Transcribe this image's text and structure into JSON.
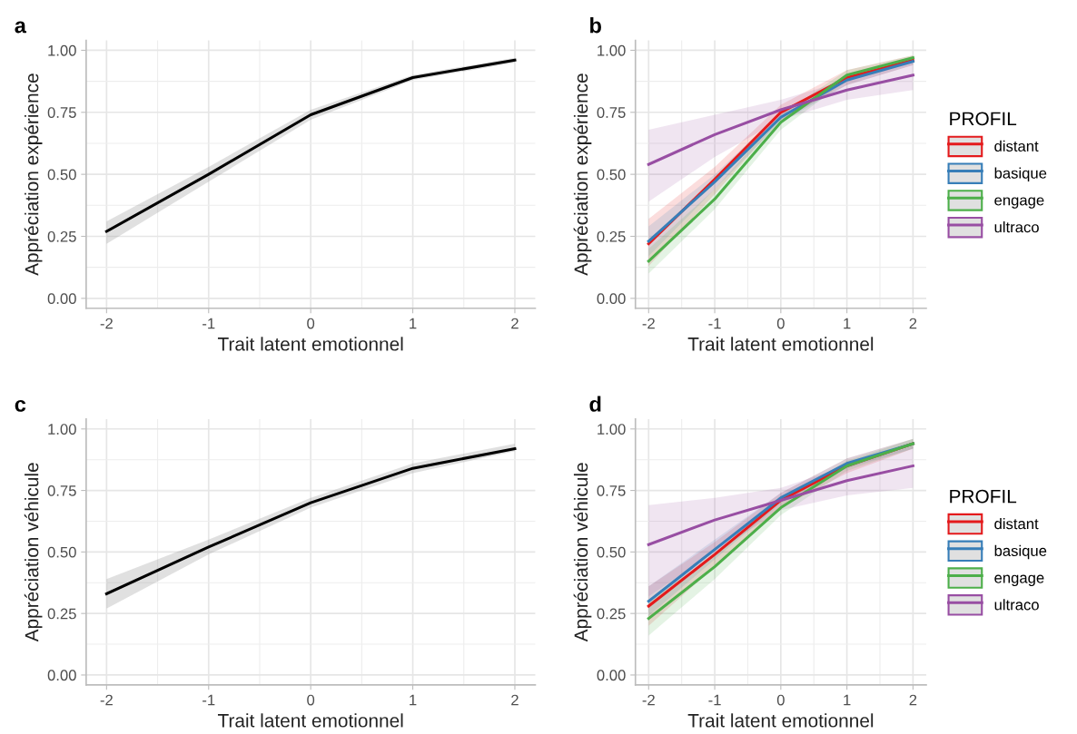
{
  "chart_data": [
    {
      "type": "line",
      "title": "a",
      "xlabel": "Trait latent emotionnel",
      "ylabel": "Appréciation expérience",
      "x": [
        -2,
        -1,
        0,
        1,
        2
      ],
      "xlim": [
        -2.2,
        2.2
      ],
      "xticks": [
        -2,
        -1,
        0,
        1,
        2
      ],
      "ylim": [
        -0.04,
        1.04
      ],
      "yticks": [
        {
          "value": 0,
          "label": "0.00"
        },
        {
          "value": 0.25,
          "label": "0.25"
        },
        {
          "value": 0.5,
          "label": "0.50"
        },
        {
          "value": 0.75,
          "label": "0.75"
        },
        {
          "value": 1,
          "label": "1.00"
        }
      ],
      "grid": true,
      "legend": false,
      "series": [
        {
          "color": "#000000",
          "values": [
            0.27,
            0.5,
            0.74,
            0.89,
            0.96
          ],
          "lower": [
            0.22,
            0.47,
            0.72,
            0.88,
            0.95
          ],
          "upper": [
            0.31,
            0.53,
            0.76,
            0.9,
            0.97
          ]
        }
      ]
    },
    {
      "type": "line",
      "title": "b",
      "xlabel": "Trait latent emotionnel",
      "ylabel": "Appréciation expérience",
      "legend_title": "PROFIL",
      "x": [
        -2,
        -1,
        0,
        1,
        2
      ],
      "xlim": [
        -2.2,
        2.2
      ],
      "xticks": [
        -2,
        -1,
        0,
        1,
        2
      ],
      "ylim": [
        -0.04,
        1.04
      ],
      "yticks": [
        {
          "value": 0,
          "label": "0.00"
        },
        {
          "value": 0.25,
          "label": "0.25"
        },
        {
          "value": 0.5,
          "label": "0.50"
        },
        {
          "value": 0.75,
          "label": "0.75"
        },
        {
          "value": 1,
          "label": "1.00"
        }
      ],
      "grid": true,
      "legend": "right",
      "series": [
        {
          "name": "distant",
          "color": "#e41a1c",
          "values": [
            0.22,
            0.48,
            0.75,
            0.89,
            0.96
          ],
          "lower": [
            0.13,
            0.42,
            0.72,
            0.86,
            0.94
          ],
          "upper": [
            0.32,
            0.53,
            0.78,
            0.92,
            0.98
          ]
        },
        {
          "name": "basique",
          "color": "#377eb8",
          "values": [
            0.23,
            0.47,
            0.73,
            0.88,
            0.955
          ],
          "lower": [
            0.17,
            0.44,
            0.71,
            0.86,
            0.94
          ],
          "upper": [
            0.29,
            0.5,
            0.75,
            0.9,
            0.97
          ]
        },
        {
          "name": "engage",
          "color": "#4daf4a",
          "values": [
            0.15,
            0.4,
            0.71,
            0.9,
            0.97
          ],
          "lower": [
            0.1,
            0.36,
            0.68,
            0.88,
            0.96
          ],
          "upper": [
            0.2,
            0.44,
            0.74,
            0.92,
            0.98
          ]
        },
        {
          "name": "ultraco",
          "color": "#984ea3",
          "values": [
            0.54,
            0.66,
            0.76,
            0.84,
            0.9
          ],
          "lower": [
            0.39,
            0.57,
            0.72,
            0.8,
            0.84
          ],
          "upper": [
            0.68,
            0.74,
            0.8,
            0.88,
            0.95
          ]
        }
      ]
    },
    {
      "type": "line",
      "title": "c",
      "xlabel": "Trait latent emotionnel",
      "ylabel": "Appréciation véhicule",
      "x": [
        -2,
        -1,
        0,
        1,
        2
      ],
      "xlim": [
        -2.2,
        2.2
      ],
      "xticks": [
        -2,
        -1,
        0,
        1,
        2
      ],
      "ylim": [
        -0.04,
        1.04
      ],
      "yticks": [
        {
          "value": 0,
          "label": "0.00"
        },
        {
          "value": 0.25,
          "label": "0.25"
        },
        {
          "value": 0.5,
          "label": "0.50"
        },
        {
          "value": 0.75,
          "label": "0.75"
        },
        {
          "value": 1,
          "label": "1.00"
        }
      ],
      "grid": true,
      "legend": false,
      "series": [
        {
          "color": "#000000",
          "values": [
            0.33,
            0.52,
            0.7,
            0.84,
            0.92
          ],
          "lower": [
            0.27,
            0.49,
            0.68,
            0.82,
            0.91
          ],
          "upper": [
            0.39,
            0.55,
            0.72,
            0.86,
            0.94
          ]
        }
      ]
    },
    {
      "type": "line",
      "title": "d",
      "xlabel": "Trait latent emotionnel",
      "ylabel": "Appréciation véhicule",
      "legend_title": "PROFIL",
      "x": [
        -2,
        -1,
        0,
        1,
        2
      ],
      "xlim": [
        -2.2,
        2.2
      ],
      "xticks": [
        -2,
        -1,
        0,
        1,
        2
      ],
      "ylim": [
        -0.04,
        1.04
      ],
      "yticks": [
        {
          "value": 0,
          "label": "0.00"
        },
        {
          "value": 0.25,
          "label": "0.25"
        },
        {
          "value": 0.5,
          "label": "0.50"
        },
        {
          "value": 0.75,
          "label": "0.75"
        },
        {
          "value": 1,
          "label": "1.00"
        }
      ],
      "grid": true,
      "legend": "right",
      "series": [
        {
          "name": "distant",
          "color": "#e41a1c",
          "values": [
            0.28,
            0.49,
            0.71,
            0.85,
            0.94
          ],
          "lower": [
            0.2,
            0.44,
            0.68,
            0.82,
            0.92
          ],
          "upper": [
            0.36,
            0.54,
            0.74,
            0.88,
            0.96
          ]
        },
        {
          "name": "basique",
          "color": "#377eb8",
          "values": [
            0.3,
            0.51,
            0.72,
            0.86,
            0.94
          ],
          "lower": [
            0.24,
            0.47,
            0.7,
            0.84,
            0.92
          ],
          "upper": [
            0.36,
            0.55,
            0.74,
            0.88,
            0.96
          ]
        },
        {
          "name": "engage",
          "color": "#4daf4a",
          "values": [
            0.23,
            0.44,
            0.68,
            0.85,
            0.94
          ],
          "lower": [
            0.16,
            0.39,
            0.65,
            0.83,
            0.92
          ],
          "upper": [
            0.3,
            0.49,
            0.71,
            0.87,
            0.96
          ]
        },
        {
          "name": "ultraco",
          "color": "#984ea3",
          "values": [
            0.53,
            0.63,
            0.71,
            0.79,
            0.85
          ],
          "lower": [
            0.32,
            0.5,
            0.67,
            0.73,
            0.76
          ],
          "upper": [
            0.69,
            0.72,
            0.76,
            0.85,
            0.93
          ]
        }
      ]
    }
  ]
}
